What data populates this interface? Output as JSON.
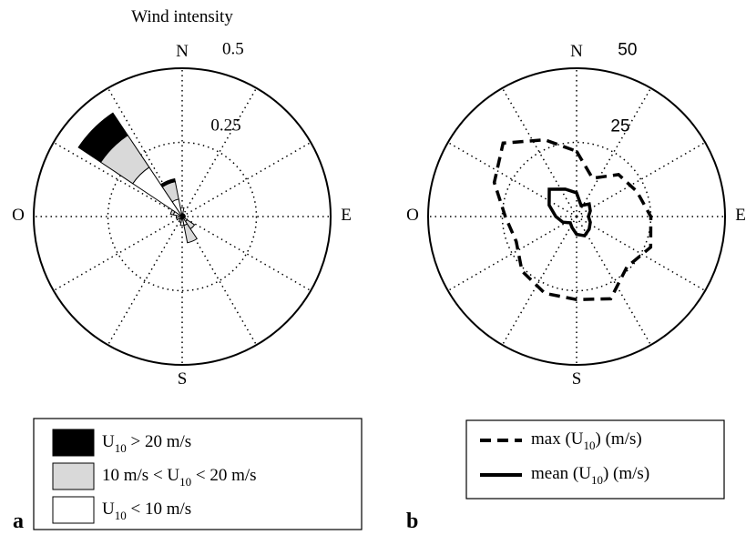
{
  "chart_data": [
    {
      "type": "polar-stacked-bar",
      "panel": "a",
      "title": "Wind intensity",
      "direction_labels": [
        "N",
        "E",
        "S",
        "O"
      ],
      "theta": [
        0,
        22.5,
        45,
        67.5,
        90,
        112.5,
        135,
        157.5,
        180,
        202.5,
        225,
        247.5,
        270,
        292.5,
        315,
        337.5
      ],
      "rlim": [
        0,
        0.5
      ],
      "rticks": [
        0.25,
        0.5
      ],
      "series": [
        {
          "name": "U10 > 20 m/s",
          "color": "#000000",
          "values": [
            0,
            0,
            0,
            0,
            0,
            0,
            0,
            0,
            0,
            0,
            0,
            0,
            0,
            0,
            0.09,
            0.01
          ]
        },
        {
          "name": "10 m/s < U10 < 20 m/s",
          "color": "#d9d9d9",
          "values": [
            0,
            0,
            0,
            0,
            0,
            0,
            0.03,
            0.06,
            0,
            0,
            0,
            0,
            0,
            0.01,
            0.13,
            0.06
          ]
        },
        {
          "name": "U10 < 10 m/s",
          "color": "#ffffff",
          "values": [
            0.03,
            0.01,
            0.01,
            0.01,
            0.01,
            0.01,
            0.02,
            0.03,
            0.03,
            0.02,
            0.01,
            0.02,
            0.02,
            0.03,
            0.2,
            0.06
          ]
        }
      ]
    },
    {
      "type": "polar-line",
      "panel": "b",
      "direction_labels": [
        "N",
        "E",
        "S",
        "O"
      ],
      "theta": [
        0,
        22.5,
        45,
        67.5,
        90,
        112.5,
        135,
        157.5,
        180,
        202.5,
        225,
        247.5,
        270,
        292.5,
        315,
        337.5
      ],
      "rlim": [
        0,
        50
      ],
      "rticks": [
        25,
        50
      ],
      "series": [
        {
          "name": "max (U10) (m/s)",
          "color": "#000000",
          "dashed": true,
          "values": [
            22,
            14,
            20,
            22,
            25,
            27,
            24,
            30,
            28,
            28,
            26,
            22,
            24,
            30,
            35,
            28
          ]
        },
        {
          "name": "mean (U10) (m/s)",
          "color": "#000000",
          "dashed": false,
          "values": [
            8,
            4,
            6,
            5,
            4,
            5,
            6,
            7,
            6,
            4,
            3,
            5,
            7,
            10,
            13,
            10
          ]
        }
      ]
    }
  ]
}
